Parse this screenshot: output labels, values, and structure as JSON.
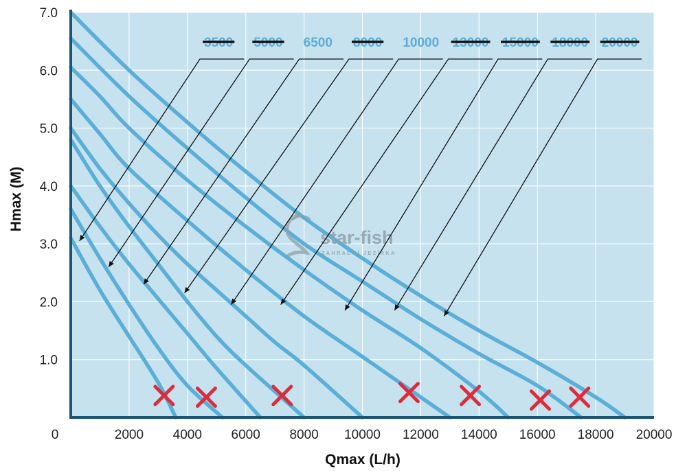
{
  "chart_data": {
    "type": "line",
    "title": "",
    "xlabel": "Qmax (L/h)",
    "ylabel": "Hmax (M)",
    "xlim": [
      0,
      20000
    ],
    "ylim": [
      0,
      7.0
    ],
    "x_ticks": [
      "0",
      "2000",
      "4000",
      "6000",
      "8000",
      "10000",
      "12000",
      "14000",
      "16000",
      "18000",
      "20000"
    ],
    "x_tick_values": [
      0,
      2000,
      4000,
      6000,
      8000,
      10000,
      12000,
      14000,
      16000,
      18000,
      20000
    ],
    "y_ticks": [
      "1.0",
      "2.0",
      "3.0",
      "4.0",
      "5.0",
      "6.0",
      "7.0"
    ],
    "y_tick_values": [
      1,
      2,
      3,
      4,
      5,
      6,
      7
    ],
    "legend_placement": "top, inline above the curves with leader arrows",
    "series": [
      {
        "name": "3500",
        "struck": true,
        "points": [
          [
            0,
            3.1
          ],
          [
            1000,
            2.2
          ],
          [
            2000,
            1.4
          ],
          [
            3000,
            0.6
          ],
          [
            3600,
            0.0
          ]
        ],
        "label_pointer": [
          300,
          3.05
        ]
      },
      {
        "name": "5000",
        "struck": true,
        "points": [
          [
            0,
            3.6
          ],
          [
            1000,
            2.75
          ],
          [
            2000,
            1.95
          ],
          [
            3000,
            1.2
          ],
          [
            4000,
            0.55
          ],
          [
            5200,
            0.0
          ]
        ],
        "label_pointer": [
          1300,
          2.6
        ]
      },
      {
        "name": "6500",
        "struck": false,
        "points": [
          [
            0,
            4.0
          ],
          [
            1000,
            3.3
          ],
          [
            2000,
            2.65
          ],
          [
            3000,
            2.05
          ],
          [
            4000,
            1.45
          ],
          [
            5000,
            0.85
          ],
          [
            6500,
            0.0
          ]
        ],
        "label_pointer": [
          2500,
          2.3
        ]
      },
      {
        "name": "8000",
        "struck": true,
        "points": [
          [
            0,
            4.8
          ],
          [
            1000,
            4.0
          ],
          [
            2000,
            3.3
          ],
          [
            3000,
            2.65
          ],
          [
            4000,
            2.0
          ],
          [
            5000,
            1.4
          ],
          [
            6000,
            0.9
          ],
          [
            8000,
            0.0
          ]
        ],
        "label_pointer": [
          3900,
          2.15
        ]
      },
      {
        "name": "10000",
        "struck": false,
        "points": [
          [
            0,
            5.0
          ],
          [
            1000,
            4.3
          ],
          [
            2000,
            3.7
          ],
          [
            3000,
            3.15
          ],
          [
            4000,
            2.65
          ],
          [
            5000,
            2.2
          ],
          [
            6000,
            1.75
          ],
          [
            7000,
            1.3
          ],
          [
            8000,
            0.9
          ],
          [
            10000,
            0.0
          ]
        ],
        "label_pointer": [
          5500,
          1.95
        ]
      },
      {
        "name": "13000",
        "struck": true,
        "points": [
          [
            0,
            5.5
          ],
          [
            1000,
            4.9
          ],
          [
            2000,
            4.3
          ],
          [
            4000,
            3.4
          ],
          [
            6000,
            2.55
          ],
          [
            8000,
            1.75
          ],
          [
            10000,
            1.05
          ],
          [
            12000,
            0.35
          ],
          [
            13000,
            0.0
          ]
        ],
        "label_pointer": [
          7200,
          1.95
        ]
      },
      {
        "name": "15000",
        "struck": true,
        "points": [
          [
            0,
            6.05
          ],
          [
            1000,
            5.55
          ],
          [
            2000,
            5.0
          ],
          [
            4000,
            4.1
          ],
          [
            6000,
            3.3
          ],
          [
            8000,
            2.55
          ],
          [
            10000,
            1.85
          ],
          [
            12000,
            1.2
          ],
          [
            14000,
            0.45
          ],
          [
            15000,
            0.0
          ]
        ],
        "label_pointer": [
          9400,
          1.85
        ]
      },
      {
        "name": "18000",
        "struck": true,
        "points": [
          [
            0,
            6.55
          ],
          [
            2000,
            5.55
          ],
          [
            4000,
            4.65
          ],
          [
            6000,
            3.8
          ],
          [
            8000,
            3.0
          ],
          [
            10000,
            2.35
          ],
          [
            12000,
            1.7
          ],
          [
            14000,
            1.1
          ],
          [
            16000,
            0.55
          ],
          [
            17500,
            0.0
          ]
        ],
        "label_pointer": [
          11100,
          1.85
        ]
      },
      {
        "name": "20000",
        "struck": true,
        "points": [
          [
            0,
            7.0
          ],
          [
            2000,
            6.0
          ],
          [
            4000,
            5.1
          ],
          [
            6000,
            4.25
          ],
          [
            8000,
            3.45
          ],
          [
            10000,
            2.75
          ],
          [
            12000,
            2.1
          ],
          [
            14000,
            1.5
          ],
          [
            16000,
            0.95
          ],
          [
            18000,
            0.35
          ],
          [
            19000,
            0.0
          ]
        ],
        "label_pointer": [
          12800,
          1.75
        ]
      }
    ],
    "cross_marks": [
      [
        3200,
        0.38
      ],
      [
        4650,
        0.35
      ],
      [
        7250,
        0.38
      ],
      [
        11600,
        0.43
      ],
      [
        13700,
        0.38
      ],
      [
        16100,
        0.3
      ],
      [
        17450,
        0.35
      ]
    ]
  },
  "colors": {
    "plot_background": "#c6e2ee",
    "curve": "#5aaed8",
    "axis": "#1a5673",
    "label": "#5aaed8",
    "strike": "#111111",
    "cross": "#e02a3a",
    "watermark": "#8fa0a8"
  },
  "watermark": {
    "brand": "star-fish",
    "tagline": "ZAHRADNÍ JEZÍRKA",
    "icon": "fish-logo-icon"
  }
}
